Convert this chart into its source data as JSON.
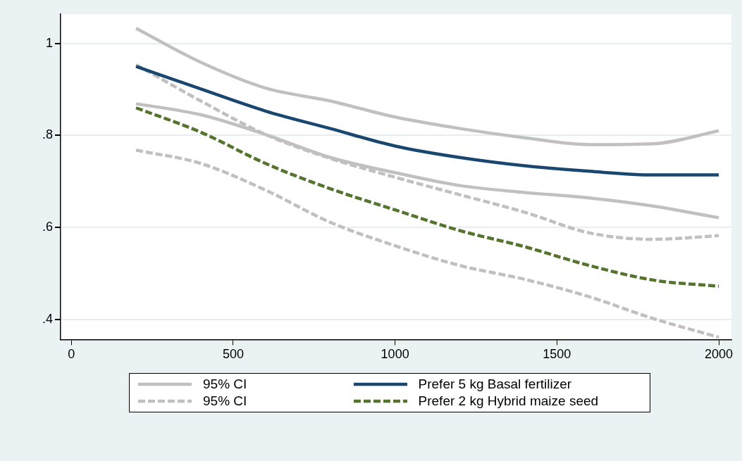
{
  "chart_data": {
    "type": "line",
    "x": [
      200,
      400,
      600,
      800,
      1000,
      1200,
      1400,
      1600,
      1800,
      2000
    ],
    "xlim": [
      -33,
      2039
    ],
    "xticks": [
      0,
      500,
      1000,
      1500,
      2000
    ],
    "ylim": [
      0.356,
      1.064
    ],
    "yticks": [
      {
        "value": 0.4,
        "label": ".4"
      },
      {
        "value": 0.6,
        "label": ".6"
      },
      {
        "value": 0.8,
        "label": ".8"
      },
      {
        "value": 1,
        "label": "1"
      }
    ],
    "grid": "y",
    "legend": "bottom",
    "marker": "none",
    "series": [
      {
        "name": "95% CI",
        "color": "#c0c0c0",
        "line_style": "solid",
        "values": [
          1.033,
          0.959,
          0.903,
          0.875,
          0.84,
          0.815,
          0.795,
          0.78,
          0.782,
          0.81
        ]
      },
      {
        "name": "Prefer 5 kg Basal fertilizer",
        "color": "#1a476f",
        "line_style": "solid",
        "values": [
          0.95,
          0.901,
          0.853,
          0.815,
          0.777,
          0.752,
          0.734,
          0.722,
          0.714,
          0.714
        ]
      },
      {
        "name": "95% CI",
        "color": "#c0c0c0",
        "line_style": "dashed",
        "values": [
          0.954,
          0.875,
          0.802,
          0.75,
          0.709,
          0.671,
          0.633,
          0.588,
          0.574,
          0.582
        ]
      },
      {
        "name": "Prefer 2 kg Hybrid maize seed",
        "color": "#55752f",
        "line_style": "dashed",
        "values": [
          0.86,
          0.807,
          0.739,
          0.684,
          0.638,
          0.593,
          0.558,
          0.517,
          0.485,
          0.472
        ]
      },
      {
        "color": "#c0c0c0",
        "line_style": "solid",
        "values": [
          0.869,
          0.845,
          0.802,
          0.752,
          0.719,
          0.691,
          0.676,
          0.664,
          0.646,
          0.621
        ]
      },
      {
        "color": "#c0c0c0",
        "line_style": "dashed",
        "values": [
          0.768,
          0.739,
          0.681,
          0.611,
          0.56,
          0.517,
          0.487,
          0.449,
          0.401,
          0.361
        ]
      }
    ]
  }
}
